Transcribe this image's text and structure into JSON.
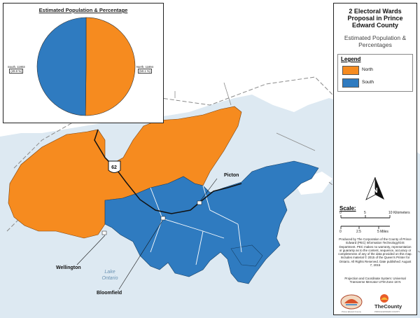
{
  "colors": {
    "water": "#dde9f2",
    "land": "#ffffff",
    "north": "#f68b1f",
    "south": "#2f7bc0",
    "road": "#111111",
    "boundary": "#9a9a9a"
  },
  "map": {
    "highway_shield": "62",
    "places": {
      "picton": "Picton",
      "wellington": "Wellington",
      "bloomfield": "Bloomfield",
      "lake_ontario": "Lake\nOntario"
    }
  },
  "inset": {
    "title": "Estimated Population & Percentage",
    "south_label": "South, 11803",
    "south_pct": "(49.9 %)",
    "north_label": "North, 11894",
    "north_pct": "(50.1 %)"
  },
  "chart_data": {
    "type": "pie",
    "title": "Estimated Population & Percentage",
    "slices": [
      {
        "name": "North",
        "value": 11894,
        "percent": 50.1,
        "color": "#f68b1f"
      },
      {
        "name": "South",
        "value": 11803,
        "percent": 49.9,
        "color": "#2f7bc0"
      }
    ]
  },
  "panel": {
    "title": "2 Electoral Wards Proposal in Prince Edward County",
    "subtitle": "Estimated Population & Percentages",
    "legend": {
      "title": "Legend",
      "north": "North",
      "south": "South"
    },
    "north_arrow_letter": "N",
    "scale": {
      "title": "Scale:",
      "km_0": "0",
      "km_5": "5",
      "km_10": "10 Kilometers",
      "mi_0": "0",
      "mi_25": "2.5",
      "mi_5": "5 Miles"
    },
    "credit": "Produced by The Corporation of the County of Prince Edward (PEC) Information Technology/GIS Department. PEC makes no warranty, representation or guaranty as to the content, sequence, accuracy or completeness of any of the data provided on this map. Includes material © 2015 of the Queen's Printer for Ontario. All Rights Reserved. Date published: August 7, 2015",
    "projection": "Projection and Coordinate System: Universal Transverse Mercator UTM Zone 18 N",
    "logo_left_text": "Prince Edward County",
    "logo_right_text": "TheCounty",
    "logo_right_sub": "PRINCE EDWARD COUNTY"
  }
}
